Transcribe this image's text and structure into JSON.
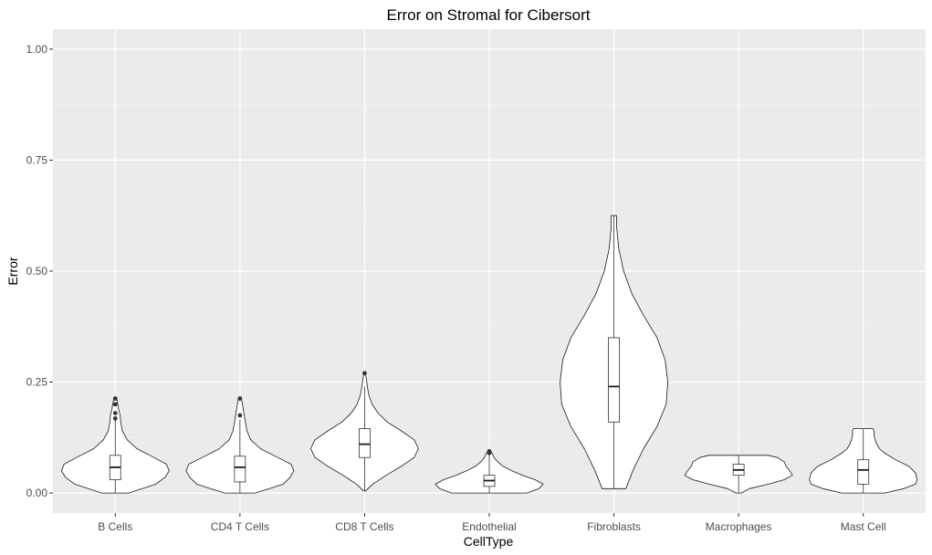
{
  "chart_data": {
    "type": "violin",
    "title": "Error on Stromal for Cibersort",
    "xlabel": "CellType",
    "ylabel": "Error",
    "ylim": [
      -0.045,
      1.045
    ],
    "yticks": [
      0.0,
      0.25,
      0.5,
      0.75,
      1.0
    ],
    "ytick_labels": [
      "0.00",
      "0.25",
      "0.50",
      "0.75",
      "1.00"
    ],
    "grid": true,
    "categories": [
      "B Cells",
      "CD4 T Cells",
      "CD8 T Cells",
      "Endothelial",
      "Fibroblasts",
      "Macrophages",
      "Mast Cell"
    ],
    "violins": [
      {
        "category": "B Cells",
        "min": 0.0,
        "max": 0.215,
        "box": {
          "q1": 0.03,
          "median": 0.058,
          "q3": 0.085,
          "whisker_low": 0.0,
          "whisker_high": 0.165
        },
        "outliers": [
          0.168,
          0.18,
          0.2,
          0.213
        ],
        "density": [
          [
            0.0,
            0.25
          ],
          [
            0.01,
            0.5
          ],
          [
            0.02,
            0.75
          ],
          [
            0.035,
            0.92
          ],
          [
            0.05,
            1.0
          ],
          [
            0.065,
            0.95
          ],
          [
            0.08,
            0.72
          ],
          [
            0.1,
            0.4
          ],
          [
            0.12,
            0.22
          ],
          [
            0.14,
            0.13
          ],
          [
            0.16,
            0.1
          ],
          [
            0.175,
            0.09
          ],
          [
            0.19,
            0.06
          ],
          [
            0.205,
            0.04
          ],
          [
            0.215,
            0.02
          ]
        ]
      },
      {
        "category": "CD4 T Cells",
        "min": 0.0,
        "max": 0.215,
        "box": {
          "q1": 0.025,
          "median": 0.058,
          "q3": 0.083,
          "whisker_low": 0.0,
          "whisker_high": 0.165
        },
        "outliers": [
          0.175,
          0.213
        ],
        "density": [
          [
            0.0,
            0.28
          ],
          [
            0.01,
            0.55
          ],
          [
            0.02,
            0.8
          ],
          [
            0.035,
            0.93
          ],
          [
            0.05,
            1.0
          ],
          [
            0.065,
            0.95
          ],
          [
            0.08,
            0.7
          ],
          [
            0.1,
            0.38
          ],
          [
            0.12,
            0.2
          ],
          [
            0.14,
            0.13
          ],
          [
            0.16,
            0.1
          ],
          [
            0.175,
            0.08
          ],
          [
            0.19,
            0.06
          ],
          [
            0.205,
            0.04
          ],
          [
            0.215,
            0.02
          ]
        ]
      },
      {
        "category": "CD8 T Cells",
        "min": 0.005,
        "max": 0.27,
        "box": {
          "q1": 0.08,
          "median": 0.11,
          "q3": 0.145,
          "whisker_low": 0.005,
          "whisker_high": 0.24
        },
        "outliers": [
          0.27
        ],
        "density": [
          [
            0.005,
            0.02
          ],
          [
            0.02,
            0.15
          ],
          [
            0.04,
            0.4
          ],
          [
            0.06,
            0.68
          ],
          [
            0.08,
            0.92
          ],
          [
            0.1,
            1.0
          ],
          [
            0.12,
            0.92
          ],
          [
            0.14,
            0.68
          ],
          [
            0.16,
            0.42
          ],
          [
            0.18,
            0.25
          ],
          [
            0.2,
            0.14
          ],
          [
            0.22,
            0.08
          ],
          [
            0.24,
            0.05
          ],
          [
            0.26,
            0.03
          ],
          [
            0.27,
            0.01
          ]
        ]
      },
      {
        "category": "Endothelial",
        "min": 0.0,
        "max": 0.095,
        "box": {
          "q1": 0.015,
          "median": 0.028,
          "q3": 0.04,
          "whisker_low": 0.0,
          "whisker_high": 0.085
        },
        "outliers": [
          0.09,
          0.094
        ],
        "density": [
          [
            0.0,
            0.7
          ],
          [
            0.01,
            0.92
          ],
          [
            0.02,
            1.0
          ],
          [
            0.03,
            0.85
          ],
          [
            0.04,
            0.62
          ],
          [
            0.05,
            0.42
          ],
          [
            0.06,
            0.26
          ],
          [
            0.07,
            0.16
          ],
          [
            0.08,
            0.09
          ],
          [
            0.09,
            0.05
          ],
          [
            0.095,
            0.02
          ]
        ]
      },
      {
        "category": "Fibroblasts",
        "min": 0.01,
        "max": 0.625,
        "box": {
          "q1": 0.16,
          "median": 0.24,
          "q3": 0.35,
          "whisker_low": 0.01,
          "whisker_high": 0.625
        },
        "outliers": [],
        "density": [
          [
            0.01,
            0.22
          ],
          [
            0.05,
            0.35
          ],
          [
            0.1,
            0.55
          ],
          [
            0.15,
            0.8
          ],
          [
            0.2,
            0.97
          ],
          [
            0.25,
            1.0
          ],
          [
            0.3,
            0.95
          ],
          [
            0.35,
            0.8
          ],
          [
            0.4,
            0.55
          ],
          [
            0.45,
            0.33
          ],
          [
            0.5,
            0.18
          ],
          [
            0.55,
            0.09
          ],
          [
            0.6,
            0.05
          ],
          [
            0.625,
            0.05
          ]
        ]
      },
      {
        "category": "Macrophages",
        "min": 0.0,
        "max": 0.085,
        "box": {
          "q1": 0.04,
          "median": 0.052,
          "q3": 0.065,
          "whisker_low": 0.0,
          "whisker_high": 0.085
        },
        "outliers": [],
        "density": [
          [
            0.0,
            0.05
          ],
          [
            0.01,
            0.2
          ],
          [
            0.02,
            0.55
          ],
          [
            0.03,
            0.85
          ],
          [
            0.04,
            1.0
          ],
          [
            0.05,
            0.95
          ],
          [
            0.06,
            0.88
          ],
          [
            0.07,
            0.85
          ],
          [
            0.08,
            0.72
          ],
          [
            0.085,
            0.55
          ]
        ]
      },
      {
        "category": "Mast Cell",
        "min": 0.0,
        "max": 0.145,
        "box": {
          "q1": 0.02,
          "median": 0.052,
          "q3": 0.075,
          "whisker_low": 0.0,
          "whisker_high": 0.145
        },
        "outliers": [],
        "density": [
          [
            0.0,
            0.4
          ],
          [
            0.01,
            0.75
          ],
          [
            0.02,
            0.97
          ],
          [
            0.03,
            1.0
          ],
          [
            0.045,
            0.97
          ],
          [
            0.06,
            0.85
          ],
          [
            0.075,
            0.6
          ],
          [
            0.09,
            0.4
          ],
          [
            0.1,
            0.3
          ],
          [
            0.11,
            0.25
          ],
          [
            0.12,
            0.22
          ],
          [
            0.13,
            0.2
          ],
          [
            0.14,
            0.2
          ],
          [
            0.145,
            0.18
          ]
        ]
      }
    ]
  }
}
